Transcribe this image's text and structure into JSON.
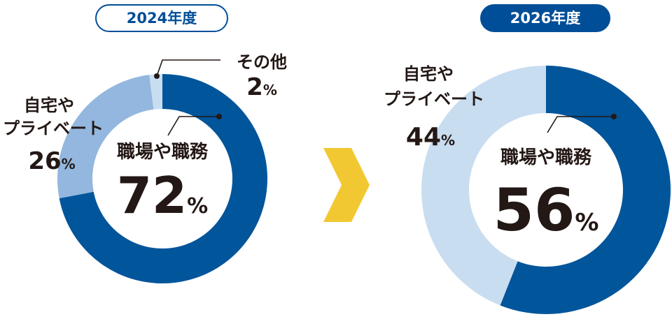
{
  "charts": [
    {
      "year": "2024年度",
      "center_label": "職場や職務",
      "center_value": "72",
      "center_unit": "%",
      "home_label_line1": "自宅や",
      "home_label_line2": "プライベート",
      "home_value": "26",
      "home_unit": "%",
      "other_label": "その他",
      "other_value": "2",
      "other_unit": "%"
    },
    {
      "year": "2026年度",
      "center_label": "職場や職務",
      "center_value": "56",
      "center_unit": "%",
      "home_label_line1": "自宅や",
      "home_label_line2": "プライベート",
      "home_value": "44",
      "home_unit": "%"
    }
  ],
  "colors": {
    "work": "#00559b",
    "home_2024": "#93b7de",
    "home_2026": "#c9ddf1",
    "other": "#c9ddf1",
    "badge": "#004e98",
    "arrow": "#f2c832",
    "text": "#231815"
  },
  "chart_data": [
    {
      "type": "pie",
      "title": "2024年度",
      "categories": [
        "職場や職務",
        "自宅やプライベート",
        "その他"
      ],
      "values": [
        72,
        26,
        2
      ]
    },
    {
      "type": "pie",
      "title": "2026年度",
      "categories": [
        "職場や職務",
        "自宅やプライベート"
      ],
      "values": [
        56,
        44
      ]
    }
  ]
}
